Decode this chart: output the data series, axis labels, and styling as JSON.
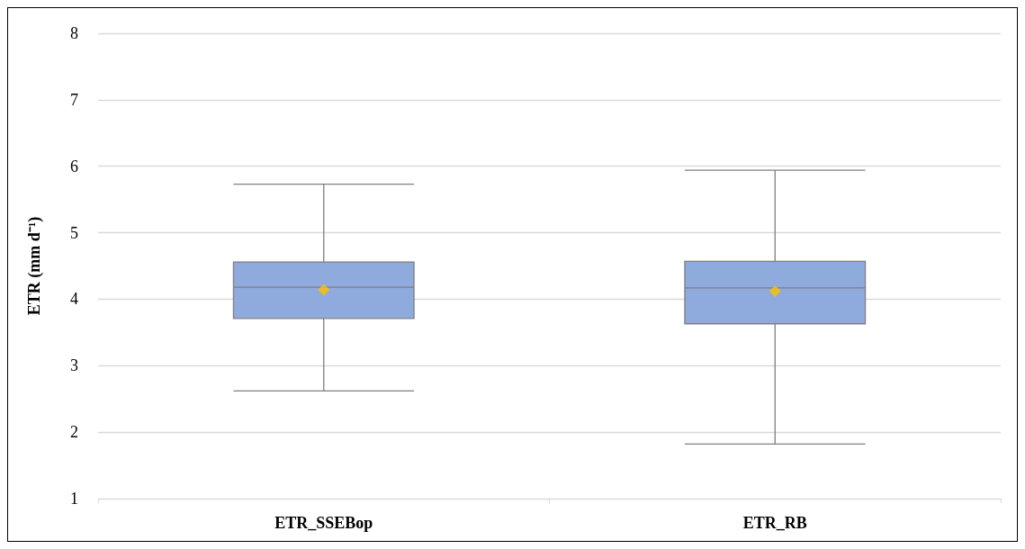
{
  "chart_data": {
    "type": "box",
    "ylabel": "ETR (mm d⁻¹)",
    "categories": [
      "ETR_SSEBop",
      "ETR_RB"
    ],
    "series": [
      {
        "color": "#8faadc",
        "boxes": [
          {
            "low": 2.62,
            "q1": 3.71,
            "median": 4.18,
            "q3": 4.56,
            "high": 5.73
          },
          {
            "low": 1.82,
            "q1": 3.63,
            "median": 4.17,
            "q3": 4.57,
            "high": 5.94
          }
        ]
      },
      {
        "type": "scatter",
        "color": "#ffc000",
        "marker": "diamond",
        "x": [
          "ETR_SSEBop",
          "ETR_RB"
        ],
        "values": [
          4.14,
          4.12
        ]
      }
    ],
    "ylim": [
      1,
      8
    ],
    "yticks": [
      1,
      2,
      3,
      4,
      5,
      6,
      7,
      8
    ],
    "grid": "y"
  }
}
